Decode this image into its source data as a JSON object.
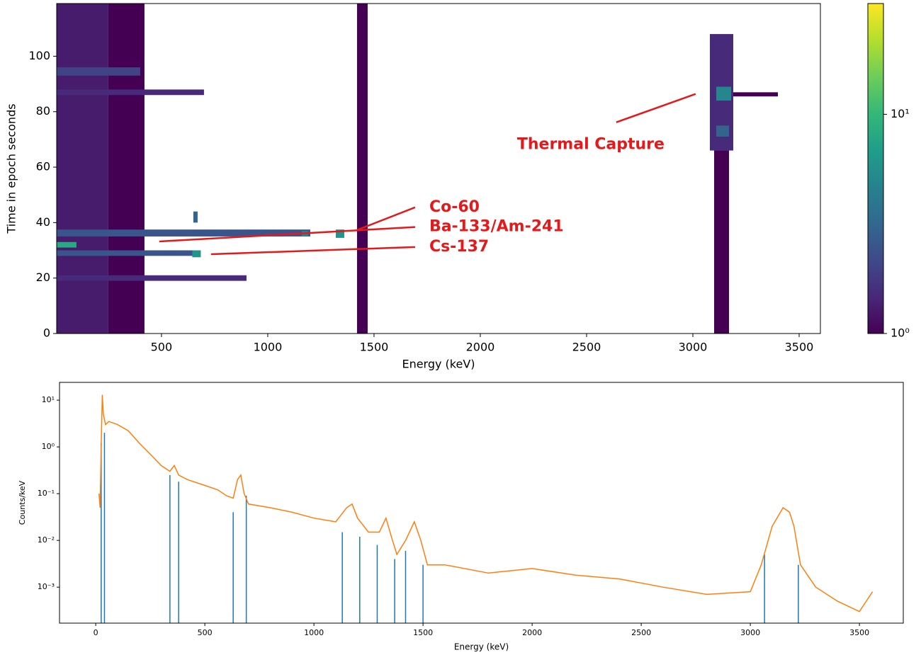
{
  "chart_data": [
    {
      "type": "heatmap",
      "xlabel": "Energy (keV)",
      "ylabel": "Time in epoch seconds",
      "xlim": [
        7,
        3600
      ],
      "ylim": [
        0,
        119
      ],
      "xticks": [
        500,
        1000,
        1500,
        2000,
        2500,
        3000,
        3500
      ],
      "yticks": [
        0,
        20,
        40,
        60,
        80,
        100
      ],
      "cmap": "viridis",
      "log_color": true,
      "clim": [
        1,
        32
      ],
      "cticks": [
        {
          "value": 1,
          "label": "10⁰"
        },
        {
          "value": 10,
          "label": "10¹"
        }
      ],
      "patches": [
        {
          "x": [
            7,
            250
          ],
          "y": [
            0,
            119
          ],
          "value": 1.3
        },
        {
          "x": [
            250,
            420
          ],
          "y": [
            0,
            119
          ],
          "value": 1
        },
        {
          "x": [
            7,
            400
          ],
          "y": [
            93,
            96
          ],
          "value": 2
        },
        {
          "x": [
            7,
            1200
          ],
          "y": [
            35,
            37.5
          ],
          "value": 2.5
        },
        {
          "x": [
            7,
            680
          ],
          "y": [
            28,
            30
          ],
          "value": 2.5
        },
        {
          "x": [
            7,
            100
          ],
          "y": [
            31,
            33
          ],
          "value": 8
        },
        {
          "x": [
            7,
            900
          ],
          "y": [
            19,
            21
          ],
          "value": 1.5
        },
        {
          "x": [
            7,
            700
          ],
          "y": [
            86,
            88
          ],
          "value": 1.5
        },
        {
          "x": [
            1160,
            1190
          ],
          "y": [
            35,
            37
          ],
          "value": 5
        },
        {
          "x": [
            1320,
            1360
          ],
          "y": [
            34.5,
            37.5
          ],
          "value": 6
        },
        {
          "x": [
            645,
            685
          ],
          "y": [
            27.5,
            30
          ],
          "value": 6
        },
        {
          "x": [
            650,
            670
          ],
          "y": [
            40,
            44
          ],
          "value": 3
        },
        {
          "x": [
            1420,
            1470
          ],
          "y": [
            0,
            119
          ],
          "value": 1
        },
        {
          "x": [
            3080,
            3190
          ],
          "y": [
            66,
            108
          ],
          "value": 1.5
        },
        {
          "x": [
            3110,
            3180
          ],
          "y": [
            84,
            89
          ],
          "value": 5
        },
        {
          "x": [
            3110,
            3170
          ],
          "y": [
            71,
            75
          ],
          "value": 3
        },
        {
          "x": [
            3100,
            3170
          ],
          "y": [
            0,
            66
          ],
          "value": 1
        },
        {
          "x": [
            3190,
            3400
          ],
          "y": [
            85.5,
            87
          ],
          "value": 1
        }
      ],
      "annotations": [
        {
          "text": "Thermal Capture",
          "xy": [
            3013,
            86.4
          ],
          "xytext": [
            2173,
            68
          ]
        },
        {
          "text": "Co-60",
          "xy": [
            1420,
            37.3
          ],
          "xytext": [
            1760,
            45.5
          ]
        },
        {
          "text": "Ba-133/Am-241",
          "xy": [
            490,
            33.2
          ],
          "xytext": [
            1760,
            38.4
          ]
        },
        {
          "text": "Cs-137",
          "xy": [
            733,
            28.6
          ],
          "xytext": [
            1760,
            31.2
          ]
        }
      ]
    },
    {
      "type": "line",
      "xlabel": "Energy (keV)",
      "ylabel": "Counts/keV",
      "log_y": true,
      "xlim": [
        -166,
        3701
      ],
      "ylim": [
        0.00017,
        24
      ],
      "xticks": [
        0,
        500,
        1000,
        1500,
        2000,
        2500,
        3000,
        3500
      ],
      "yticks": [
        {
          "value": 0.001,
          "label": "10⁻³"
        },
        {
          "value": 0.01,
          "label": "10⁻²"
        },
        {
          "value": 0.1,
          "label": "10⁻¹"
        },
        {
          "value": 1,
          "label": "10⁰"
        },
        {
          "value": 10,
          "label": "10¹"
        }
      ],
      "series": [
        {
          "color": "#ff7f0e",
          "x": [
            15,
            20,
            25,
            30,
            35,
            45,
            60,
            100,
            150,
            200,
            250,
            300,
            340,
            360,
            380,
            420,
            500,
            560,
            600,
            630,
            650,
            665,
            680,
            700,
            800,
            900,
            1000,
            1100,
            1150,
            1175,
            1200,
            1250,
            1300,
            1330,
            1360,
            1380,
            1420,
            1460,
            1490,
            1520,
            1600,
            1800,
            2000,
            2200,
            2400,
            2600,
            2800,
            3000,
            3050,
            3100,
            3150,
            3180,
            3200,
            3230,
            3300,
            3400,
            3500,
            3560
          ],
          "values": [
            0.1,
            0.05,
            1,
            13,
            5,
            3,
            3.5,
            3,
            2.2,
            1.2,
            0.7,
            0.4,
            0.3,
            0.4,
            0.25,
            0.2,
            0.15,
            0.12,
            0.09,
            0.08,
            0.2,
            0.25,
            0.1,
            0.06,
            0.05,
            0.04,
            0.03,
            0.025,
            0.05,
            0.06,
            0.03,
            0.015,
            0.015,
            0.03,
            0.01,
            0.005,
            0.01,
            0.025,
            0.01,
            0.003,
            0.003,
            0.002,
            0.0025,
            0.0018,
            0.0015,
            0.001,
            0.0007,
            0.0008,
            0.003,
            0.02,
            0.05,
            0.04,
            0.02,
            0.003,
            0.001,
            0.0005,
            0.0003,
            0.0008
          ]
        }
      ],
      "vlines": {
        "color": "#1f77b4",
        "x": [
          25,
          40,
          340,
          380,
          630,
          690,
          1130,
          1210,
          1290,
          1370,
          1420,
          1500,
          3065,
          3220
        ],
        "values": [
          1.2,
          2,
          0.25,
          0.18,
          0.04,
          0.09,
          0.015,
          0.012,
          0.008,
          0.004,
          0.006,
          0.003,
          0.005,
          0.003
        ]
      }
    }
  ]
}
